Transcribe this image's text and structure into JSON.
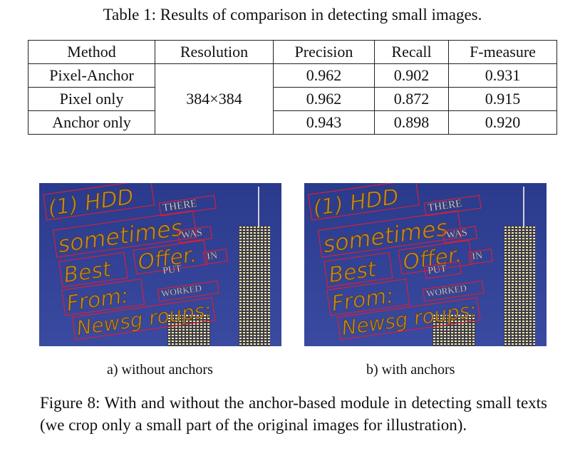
{
  "table": {
    "caption": "Table 1: Results of comparison in detecting small images.",
    "headers": [
      "Method",
      "Resolution",
      "Precision",
      "Recall",
      "F-measure"
    ],
    "resolution": "384×384",
    "rows": [
      {
        "method": "Pixel-Anchor",
        "precision": "0.962",
        "recall": "0.902",
        "fmeasure": "0.931"
      },
      {
        "method": "Pixel only",
        "precision": "0.962",
        "recall": "0.872",
        "fmeasure": "0.915"
      },
      {
        "method": "Anchor only",
        "precision": "0.943",
        "recall": "0.898",
        "fmeasure": "0.920"
      }
    ]
  },
  "figure": {
    "image_words": {
      "hdd": "(1) HDD",
      "there": "THERE",
      "sometimes": "sometimes",
      "was": "WAS",
      "best": "Best",
      "offer": "Offer.",
      "put": "PUT",
      "in": "IN",
      "from": "From:",
      "worked": "WORKED",
      "newsgroups": "Newsg roups:"
    },
    "sub_a": "a)  without anchors",
    "sub_b": "b) with anchors",
    "caption": "Figure 8: With and without the anchor-based module in detecting small texts (we crop only a small part of the original images for illustration).",
    "colors": {
      "sky": "#2a3a8c",
      "text_fill": "#c08a30",
      "box_stroke": "#d0223a"
    }
  }
}
